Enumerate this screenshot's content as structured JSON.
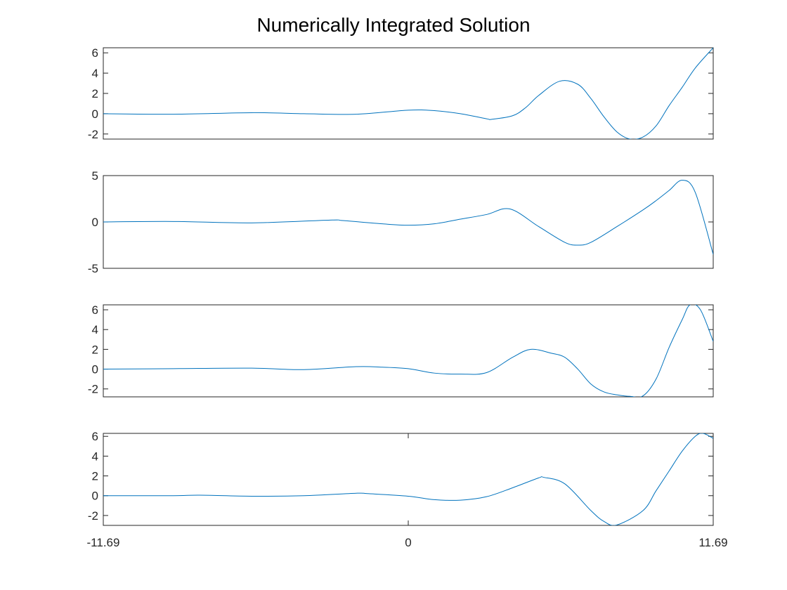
{
  "chart_data": {
    "type": "line",
    "title": "Numerically Integrated Solution",
    "line_color": "#0072BD",
    "x_range": [
      -11.69,
      11.69
    ],
    "x_tick_values": [
      -11.69,
      0,
      11.69
    ],
    "x_tick_labels": [
      "-11.69",
      "0",
      "11.69"
    ],
    "grid": false,
    "legend": "none",
    "subplots": [
      {
        "ylim": [
          -2.5,
          6.5
        ],
        "y_tick_values": [
          -2,
          0,
          2,
          4,
          6
        ],
        "y_tick_labels": [
          "-2",
          "0",
          "2",
          "4",
          "6"
        ],
        "x": [
          -11.69,
          -9,
          -6,
          -4,
          -2,
          0,
          1,
          2,
          3,
          3.2,
          4,
          4.5,
          5,
          5.8,
          6.5,
          7,
          7.5,
          8,
          8.5,
          9,
          9.5,
          10,
          10.5,
          11,
          11.69
        ],
        "y": [
          0,
          -0.05,
          0.1,
          0.0,
          -0.05,
          0.35,
          0.3,
          0.0,
          -0.5,
          -0.55,
          -0.2,
          0.6,
          1.8,
          3.2,
          2.9,
          1.5,
          -0.3,
          -1.8,
          -2.5,
          -2.3,
          -1.2,
          0.8,
          2.6,
          4.5,
          6.5
        ]
      },
      {
        "ylim": [
          -5,
          5
        ],
        "y_tick_values": [
          -5,
          0,
          5
        ],
        "y_tick_labels": [
          "-5",
          "0",
          "5"
        ],
        "x": [
          -11.69,
          -9,
          -6,
          -3,
          -2.5,
          -1,
          0,
          1,
          2,
          3,
          3.9,
          5,
          6,
          6.5,
          7,
          8,
          9,
          9.5,
          10,
          10.5,
          11,
          11.69
        ],
        "y": [
          0,
          0.05,
          -0.1,
          0.2,
          0.15,
          -0.2,
          -0.35,
          -0.2,
          0.3,
          0.8,
          1.4,
          -0.5,
          -2.2,
          -2.5,
          -2.2,
          -0.5,
          1.3,
          2.3,
          3.4,
          4.5,
          3.2,
          -3.5
        ]
      },
      {
        "ylim": [
          -2.8,
          6.5
        ],
        "y_tick_values": [
          -2,
          0,
          2,
          4,
          6
        ],
        "y_tick_labels": [
          "-2",
          "0",
          "2",
          "4",
          "6"
        ],
        "x": [
          -11.69,
          -9,
          -6,
          -4,
          -2,
          -1,
          0,
          1,
          2,
          3,
          4,
          4.7,
          5.5,
          6,
          6.5,
          7,
          7.5,
          8,
          8.5,
          9,
          9.5,
          10,
          10.5,
          10.8,
          11.2,
          11.69
        ],
        "y": [
          0,
          0.05,
          0.1,
          -0.05,
          0.25,
          0.2,
          0.05,
          -0.4,
          -0.5,
          -0.35,
          1.2,
          2.0,
          1.6,
          1.2,
          0.0,
          -1.5,
          -2.3,
          -2.6,
          -2.75,
          -2.7,
          -1.0,
          2.2,
          5.0,
          6.5,
          6.0,
          2.8
        ]
      },
      {
        "ylim": [
          -3,
          6.3
        ],
        "y_tick_values": [
          -2,
          0,
          2,
          4,
          6
        ],
        "y_tick_labels": [
          "-2",
          "0",
          "2",
          "4",
          "6"
        ],
        "x": [
          -11.69,
          -9,
          -8,
          -6,
          -4,
          -2,
          -1.5,
          0,
          1,
          2,
          3,
          4,
          5,
          5.2,
          6,
          7,
          7.5,
          8,
          9,
          9.5,
          10,
          10.5,
          11,
          11.3,
          11.69
        ],
        "y": [
          0,
          0.0,
          0.05,
          -0.05,
          0.0,
          0.25,
          0.2,
          -0.05,
          -0.4,
          -0.45,
          -0.1,
          0.8,
          1.8,
          1.85,
          1.2,
          -1.5,
          -2.6,
          -2.95,
          -1.5,
          0.5,
          2.5,
          4.5,
          6.0,
          6.3,
          5.8
        ]
      }
    ]
  }
}
